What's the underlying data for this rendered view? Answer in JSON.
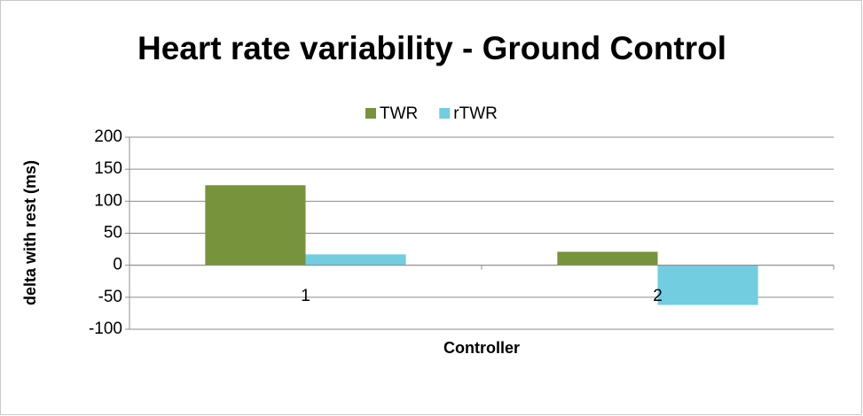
{
  "chart_data": {
    "type": "bar",
    "title": "Heart rate variability - Ground Control",
    "x_label": "Controller",
    "y_label": "delta with rest (ms)",
    "categories": [
      "1",
      "2"
    ],
    "series": [
      {
        "name": "TWR",
        "color": "#77933c",
        "values": [
          125,
          21
        ]
      },
      {
        "name": "rTWR",
        "color": "#72cde0",
        "values": [
          17,
          -62
        ]
      }
    ],
    "ylim": [
      -100,
      200
    ],
    "yticks": [
      -100,
      -50,
      0,
      50,
      100,
      150,
      200
    ],
    "grid": true,
    "legend": "top"
  }
}
